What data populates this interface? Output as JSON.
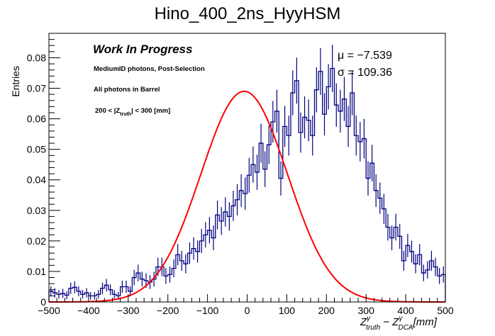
{
  "chart_data": {
    "type": "histogram",
    "title": "Hino_400_2ns_HyyHSM",
    "xlabel": "Z^γ_truth − Z^γ_DCA [mm]",
    "xlabel_parts": {
      "z1": "Z",
      "sup1": "γ",
      "sub1": "truth",
      "minus": " − ",
      "z2": "Z",
      "sup2": "γ",
      "sub2": "DCA",
      "unit": "[mm]"
    },
    "ylabel": "Entries",
    "xlim": [
      -500,
      500
    ],
    "ylim": [
      0,
      0.088
    ],
    "x_ticks": [
      -500,
      -400,
      -300,
      -200,
      -100,
      0,
      100,
      200,
      300,
      400,
      500
    ],
    "x_tick_labels": [
      "−500",
      "−400",
      "−300",
      "−200",
      "−100",
      "0",
      "100",
      "200",
      "300",
      "400",
      "500"
    ],
    "y_ticks": [
      0,
      0.01,
      0.02,
      0.03,
      0.04,
      0.05,
      0.06,
      0.07,
      0.08
    ],
    "y_tick_labels": [
      "0",
      "0.01",
      "0.02",
      "0.03",
      "0.04",
      "0.05",
      "0.06",
      "0.07",
      "0.08"
    ],
    "grid": false,
    "bin_edges_start": -500,
    "bin_width": 10,
    "series": [
      {
        "name": "histogram",
        "color": "#000080",
        "values": [
          0.0035,
          0.003,
          0.0025,
          0.0028,
          0.0022,
          0.0045,
          0.0048,
          0.0035,
          0.0025,
          0.003,
          0.002,
          0.002,
          0.0025,
          0.0045,
          0.0055,
          0.004,
          0.0025,
          0.002,
          0.005,
          0.005,
          0.0035,
          0.008,
          0.0095,
          0.0075,
          0.007,
          0.0065,
          0.0075,
          0.0115,
          0.0115,
          0.0085,
          0.009,
          0.011,
          0.0155,
          0.0135,
          0.0125,
          0.016,
          0.0175,
          0.0165,
          0.02,
          0.022,
          0.0235,
          0.021,
          0.0285,
          0.0265,
          0.0295,
          0.028,
          0.0315,
          0.0335,
          0.0365,
          0.0355,
          0.0415,
          0.045,
          0.0425,
          0.052,
          0.0435,
          0.0515,
          0.059,
          0.0625,
          0.0405,
          0.0575,
          0.0545,
          0.0685,
          0.0725,
          0.0555,
          0.0605,
          0.0595,
          0.0545,
          0.0695,
          0.0755,
          0.0615,
          0.0705,
          0.0765,
          0.0645,
          0.0625,
          0.0665,
          0.0575,
          0.0685,
          0.0545,
          0.0525,
          0.0535,
          0.0405,
          0.0455,
          0.0365,
          0.034,
          0.0305,
          0.0245,
          0.021,
          0.0245,
          0.0215,
          0.0135,
          0.0185,
          0.0165,
          0.0125,
          0.0155,
          0.0095,
          0.0105,
          0.0135,
          0.0115,
          0.0085,
          0.009
        ]
      },
      {
        "name": "gaussian-fit",
        "color": "#ff0000",
        "function": "gaussian",
        "amplitude": 0.069,
        "mean": -7.539,
        "sigma": 109.36
      }
    ],
    "annotations": {
      "wip": "Work In Progress",
      "line1": "MediumID photons, Post-Selection",
      "line2": "All photons in Barrel",
      "line3_pre": "200 < |Z",
      "line3_sub": "truth",
      "line3_post": "| < 300 [mm]",
      "mu_label": "μ = −7.539",
      "sigma_label": "σ = 109.36"
    }
  }
}
